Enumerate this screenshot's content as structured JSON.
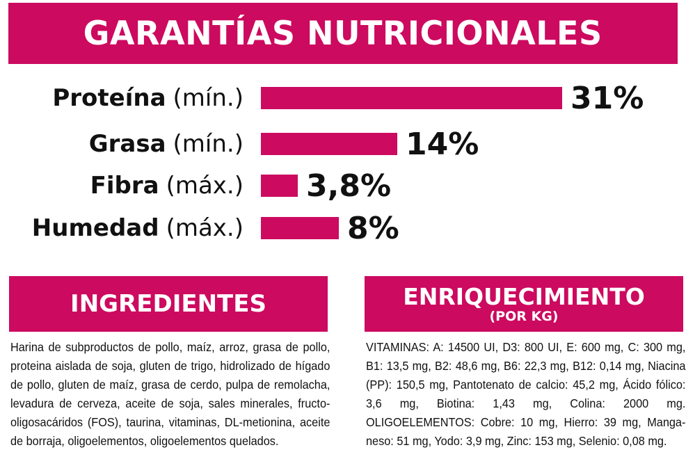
{
  "title": "GARANTÍAS NUTRICIONALES",
  "colors": {
    "accent": "#cc0a5f",
    "text": "#111111",
    "background": "#ffffff"
  },
  "chart_data": {
    "type": "bar",
    "orientation": "horizontal",
    "categories": [
      "Proteína",
      "Grasa",
      "Fibra",
      "Humedad"
    ],
    "qualifiers": [
      "(mín.)",
      "(mín.)",
      "(máx.)",
      "(máx.)"
    ],
    "values": [
      31,
      14,
      3.8,
      8
    ],
    "value_labels": [
      "31%",
      "14%",
      "3,8%",
      "8%"
    ],
    "unit": "%",
    "xlim": [
      0,
      31
    ],
    "grid": false,
    "legend": "none"
  },
  "ingredients": {
    "heading": "INGREDIENTES",
    "text": "Harina de subproductos de pollo, maíz, arroz,  grasa de pollo, proteina aislada de soja, gluten de trigo, hidrolizado de hígado de pollo, gluten de maíz, grasa de cerdo, pulpa de remolacha, levadura de cerveza, aceite de soja, sales minerales, fructo-oligosacáridos (FOS), taurina,  vitaminas, DL-metionina, aceite de borraja, oligoelementos, oligoele­mentos quelados."
  },
  "enrichment": {
    "heading": "ENRIQUECIMIENTO",
    "subheading": "(POR KG)",
    "text": "VITAMINAS: A: 14500 UI, D3: 800 UI, E: 600 mg, C: 300 mg, B1: 13,5 mg, B2: 48,6 mg, B6: 22,3 mg, B12: 0,14 mg, Niacina (PP): 150,5 mg, Pantotenato de calcio: 45,2 mg, Ácido fólico: 3,6 mg, Biotina: 1,43 mg, Colina: 2000 mg. OLIGOELEMENTOS: Cobre: 10 mg, Hierro: 39 mg, Manga­neso: 51 mg, Yodo: 3,9 mg, Zinc: 153 mg, Selenio: 0,08 mg."
  }
}
